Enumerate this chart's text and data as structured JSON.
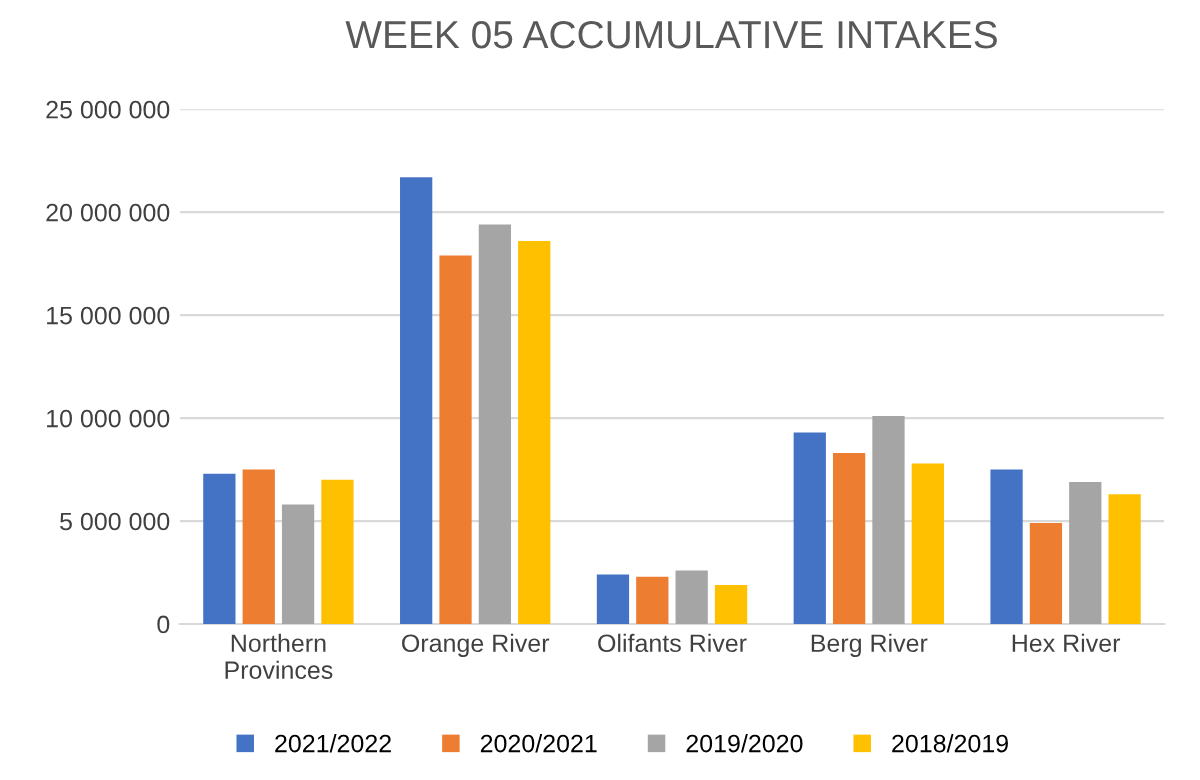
{
  "chart_data": {
    "type": "bar",
    "title": "WEEK 05 ACCUMULATIVE INTAKES",
    "categories": [
      "Northern\nProvinces",
      "Orange River",
      "Olifants River",
      "Berg River",
      "Hex River"
    ],
    "series": [
      {
        "name": "2021/2022",
        "color": "#4472c4",
        "values": [
          7300000,
          21700000,
          2400000,
          9300000,
          7500000
        ]
      },
      {
        "name": "2020/2021",
        "color": "#ed7d31",
        "values": [
          7500000,
          17900000,
          2300000,
          8300000,
          4900000
        ]
      },
      {
        "name": "2019/2020",
        "color": "#a5a5a5",
        "values": [
          5800000,
          19400000,
          2600000,
          10100000,
          6900000
        ]
      },
      {
        "name": "2018/2019",
        "color": "#ffc000",
        "values": [
          7000000,
          18600000,
          1900000,
          7800000,
          6300000
        ]
      }
    ],
    "ylim": [
      0,
      25000000
    ],
    "yticks": [
      {
        "value": 0,
        "label": "0"
      },
      {
        "value": 5000000,
        "label": "5 000 000"
      },
      {
        "value": 10000000,
        "label": "10 000 000"
      },
      {
        "value": 15000000,
        "label": "15 000 000"
      },
      {
        "value": 20000000,
        "label": "20 000 000"
      },
      {
        "value": 25000000,
        "label": "25 000 000"
      }
    ],
    "grid": "y",
    "legend": "bottom"
  }
}
